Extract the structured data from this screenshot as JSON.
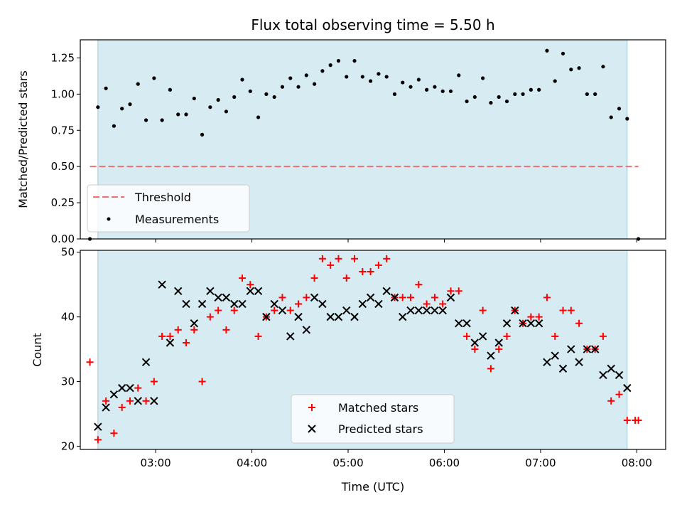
{
  "chart_data": [
    {
      "type": "scatter",
      "title": "Flux total observing time = 5.50 h",
      "ylabel": "Matched/Predicted stars",
      "xlim": [
        "02:13",
        "08:18"
      ],
      "ylim": [
        0,
        1.375
      ],
      "yticks": [
        "0.00",
        "0.25",
        "0.50",
        "0.75",
        "1.00",
        "1.25"
      ],
      "grid": false,
      "legend_position": "bottom-left",
      "shaded_span": [
        "02:24",
        "07:54"
      ],
      "threshold": {
        "name": "Threshold",
        "value": 0.5,
        "x_from": "02:19",
        "x_to": "08:01",
        "color": "#f07070"
      },
      "series": [
        {
          "name": "Measurements",
          "marker": "dot",
          "color": "#000000",
          "x": [
            "02:19",
            "02:24",
            "02:29",
            "02:34",
            "02:39",
            "02:44",
            "02:49",
            "02:54",
            "02:59",
            "03:04",
            "03:09",
            "03:14",
            "03:19",
            "03:24",
            "03:29",
            "03:34",
            "03:39",
            "03:44",
            "03:49",
            "03:54",
            "03:59",
            "04:04",
            "04:09",
            "04:14",
            "04:19",
            "04:24",
            "04:29",
            "04:34",
            "04:39",
            "04:44",
            "04:49",
            "04:54",
            "04:59",
            "05:04",
            "05:09",
            "05:14",
            "05:19",
            "05:24",
            "05:29",
            "05:34",
            "05:39",
            "05:44",
            "05:49",
            "05:54",
            "05:59",
            "06:04",
            "06:09",
            "06:14",
            "06:19",
            "06:24",
            "06:29",
            "06:34",
            "06:39",
            "06:44",
            "06:49",
            "06:54",
            "06:59",
            "07:04",
            "07:09",
            "07:14",
            "07:19",
            "07:24",
            "07:29",
            "07:34",
            "07:39",
            "07:44",
            "07:49",
            "07:54",
            "08:01"
          ],
          "y": [
            0.0,
            0.91,
            1.04,
            0.78,
            0.9,
            0.93,
            1.07,
            0.82,
            1.11,
            0.82,
            1.03,
            0.86,
            0.86,
            0.97,
            0.72,
            0.91,
            0.96,
            0.88,
            0.98,
            1.1,
            1.02,
            0.84,
            1.0,
            0.98,
            1.05,
            1.11,
            1.05,
            1.13,
            1.07,
            1.16,
            1.2,
            1.23,
            1.12,
            1.23,
            1.12,
            1.09,
            1.14,
            1.12,
            1.0,
            1.08,
            1.05,
            1.1,
            1.03,
            1.05,
            1.02,
            1.02,
            1.13,
            0.95,
            0.98,
            1.11,
            0.94,
            0.98,
            0.95,
            1.0,
            1.0,
            1.03,
            1.03,
            1.3,
            1.09,
            1.28,
            1.17,
            1.18,
            1.0,
            1.0,
            1.19,
            0.84,
            0.9,
            0.83,
            0.0
          ]
        }
      ]
    },
    {
      "type": "scatter",
      "xlabel": "Time (UTC)",
      "ylabel": "Count",
      "xlim": [
        "02:13",
        "08:18"
      ],
      "ylim": [
        19.5,
        50.3
      ],
      "xticks": [
        "03:00",
        "04:00",
        "05:00",
        "06:00",
        "07:00",
        "08:00"
      ],
      "yticks": [
        "20",
        "30",
        "40",
        "50"
      ],
      "grid": false,
      "legend_position": "bottom-center",
      "shaded_span": [
        "02:24",
        "07:54"
      ],
      "series": [
        {
          "name": "Matched stars",
          "marker": "plus",
          "color": "#ff0000",
          "x": [
            "02:19",
            "02:24",
            "02:29",
            "02:34",
            "02:39",
            "02:44",
            "02:49",
            "02:54",
            "02:59",
            "03:04",
            "03:09",
            "03:14",
            "03:19",
            "03:24",
            "03:29",
            "03:34",
            "03:39",
            "03:44",
            "03:49",
            "03:54",
            "03:59",
            "04:04",
            "04:09",
            "04:14",
            "04:19",
            "04:24",
            "04:29",
            "04:34",
            "04:39",
            "04:44",
            "04:49",
            "04:54",
            "04:59",
            "05:04",
            "05:09",
            "05:14",
            "05:19",
            "05:24",
            "05:29",
            "05:34",
            "05:39",
            "05:44",
            "05:49",
            "05:54",
            "05:59",
            "06:04",
            "06:09",
            "06:14",
            "06:19",
            "06:24",
            "06:29",
            "06:34",
            "06:39",
            "06:44",
            "06:49",
            "06:54",
            "06:59",
            "07:04",
            "07:09",
            "07:14",
            "07:19",
            "07:24",
            "07:29",
            "07:34",
            "07:39",
            "07:44",
            "07:49",
            "07:54",
            "07:59",
            "08:01"
          ],
          "y": [
            33,
            21,
            27,
            22,
            26,
            27,
            29,
            27,
            30,
            37,
            37,
            38,
            36,
            38,
            30,
            40,
            41,
            38,
            41,
            46,
            45,
            37,
            40,
            41,
            43,
            41,
            42,
            43,
            46,
            49,
            48,
            49,
            46,
            49,
            47,
            47,
            48,
            49,
            43,
            43,
            43,
            45,
            42,
            43,
            42,
            44,
            44,
            37,
            35,
            41,
            32,
            35,
            37,
            41,
            39,
            40,
            40,
            43,
            37,
            41,
            41,
            39,
            35,
            35,
            37,
            27,
            28,
            24,
            24,
            24
          ]
        },
        {
          "name": "Predicted stars",
          "marker": "cross",
          "color": "#000000",
          "x": [
            "02:24",
            "02:29",
            "02:34",
            "02:39",
            "02:44",
            "02:49",
            "02:54",
            "02:59",
            "03:04",
            "03:09",
            "03:14",
            "03:19",
            "03:24",
            "03:29",
            "03:34",
            "03:39",
            "03:44",
            "03:49",
            "03:54",
            "03:59",
            "04:04",
            "04:09",
            "04:14",
            "04:19",
            "04:24",
            "04:29",
            "04:34",
            "04:39",
            "04:44",
            "04:49",
            "04:54",
            "04:59",
            "05:04",
            "05:09",
            "05:14",
            "05:19",
            "05:24",
            "05:29",
            "05:34",
            "05:39",
            "05:44",
            "05:49",
            "05:54",
            "05:59",
            "06:04",
            "06:09",
            "06:14",
            "06:19",
            "06:24",
            "06:29",
            "06:34",
            "06:39",
            "06:44",
            "06:49",
            "06:54",
            "06:59",
            "07:04",
            "07:09",
            "07:14",
            "07:19",
            "07:24",
            "07:29",
            "07:34",
            "07:39",
            "07:44",
            "07:49",
            "07:54"
          ],
          "y": [
            23,
            26,
            28,
            29,
            29,
            27,
            33,
            27,
            45,
            36,
            44,
            42,
            39,
            42,
            44,
            43,
            43,
            42,
            42,
            44,
            44,
            40,
            42,
            41,
            37,
            40,
            38,
            43,
            42,
            40,
            40,
            41,
            40,
            42,
            43,
            42,
            44,
            43,
            40,
            41,
            41,
            41,
            41,
            41,
            43,
            39,
            39,
            36,
            37,
            34,
            36,
            39,
            41,
            39,
            39,
            39,
            33,
            34,
            32,
            35,
            33,
            35,
            35,
            31,
            32,
            31,
            29
          ]
        }
      ]
    }
  ]
}
